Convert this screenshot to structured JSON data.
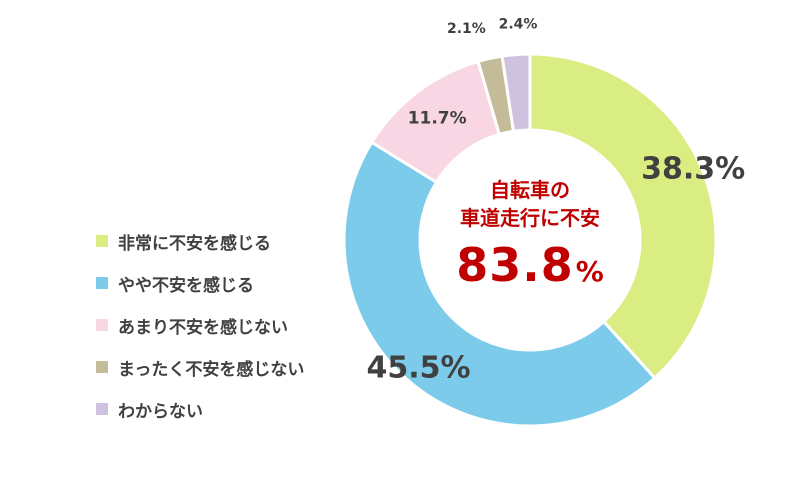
{
  "chart_data": {
    "type": "pie",
    "categories": [
      "非常に不安を感じる",
      "やや不安を感じる",
      "あまり不安を感じない",
      "まったく不安を感じない",
      "わからない"
    ],
    "values": [
      38.3,
      45.5,
      11.7,
      2.1,
      2.4
    ],
    "labels": [
      "38.3%",
      "45.5%",
      "11.7%",
      "2.1%",
      "2.4%"
    ],
    "colors": [
      "#d9ed82",
      "#7ccbea",
      "#f9d6e4",
      "#c4bc98",
      "#cfc2de"
    ],
    "legend_position": "left",
    "center_text": {
      "line1": "自転車の",
      "line2": "車道走行に不安",
      "value": "83.8",
      "unit": "%"
    }
  }
}
